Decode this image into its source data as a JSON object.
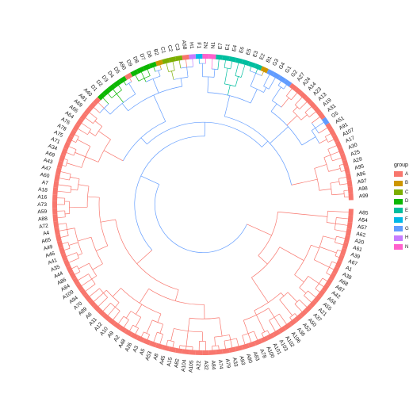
{
  "legend": {
    "title": "group",
    "items": [
      {
        "key": "A",
        "label": "A",
        "color": "#F8766D"
      },
      {
        "key": "B",
        "label": "B",
        "color": "#CD9600"
      },
      {
        "key": "C",
        "label": "C",
        "color": "#7CAE00"
      },
      {
        "key": "D",
        "label": "D",
        "color": "#0CB702"
      },
      {
        "key": "E",
        "label": "E",
        "color": "#00BE9F"
      },
      {
        "key": "F",
        "label": "F",
        "color": "#00B8E7"
      },
      {
        "key": "G",
        "label": "G",
        "color": "#619CFF"
      },
      {
        "key": "H",
        "label": "H",
        "color": "#C77CFF"
      },
      {
        "key": "N",
        "label": "N",
        "color": "#FF61CC"
      }
    ]
  },
  "tips": [
    {
      "label": "A99",
      "group": "A"
    },
    {
      "label": "A98",
      "group": "A"
    },
    {
      "label": "A97",
      "group": "A"
    },
    {
      "label": "A96",
      "group": "A"
    },
    {
      "label": "A95",
      "group": "A"
    },
    {
      "label": "A28",
      "group": "A"
    },
    {
      "label": "A25",
      "group": "A"
    },
    {
      "label": "A30",
      "group": "A"
    },
    {
      "label": "A17",
      "group": "A"
    },
    {
      "label": "A107",
      "group": "A"
    },
    {
      "label": "A91",
      "group": "A"
    },
    {
      "label": "A51",
      "group": "A"
    },
    {
      "label": "G5",
      "group": "G"
    },
    {
      "label": "A31",
      "group": "A"
    },
    {
      "label": "A19",
      "group": "A"
    },
    {
      "label": "A13",
      "group": "A"
    },
    {
      "label": "A23",
      "group": "A"
    },
    {
      "label": "A14",
      "group": "A"
    },
    {
      "label": "A24",
      "group": "A"
    },
    {
      "label": "A27",
      "group": "A"
    },
    {
      "label": "G2",
      "group": "G"
    },
    {
      "label": "G1",
      "group": "G"
    },
    {
      "label": "G4",
      "group": "G"
    },
    {
      "label": "G3",
      "group": "G"
    },
    {
      "label": "B1",
      "group": "B"
    },
    {
      "label": "E2",
      "group": "E"
    },
    {
      "label": "E3",
      "group": "E"
    },
    {
      "label": "E5",
      "group": "E"
    },
    {
      "label": "E6",
      "group": "E"
    },
    {
      "label": "E4",
      "group": "E"
    },
    {
      "label": "E1",
      "group": "E"
    },
    {
      "label": "E7",
      "group": "E"
    },
    {
      "label": "N1",
      "group": "N"
    },
    {
      "label": "N2",
      "group": "N"
    },
    {
      "label": "F1",
      "group": "F"
    },
    {
      "label": "H1",
      "group": "H"
    },
    {
      "label": "A58",
      "group": "A"
    },
    {
      "label": "C3",
      "group": "C"
    },
    {
      "label": "C2",
      "group": "C"
    },
    {
      "label": "C1",
      "group": "C"
    },
    {
      "label": "B2",
      "group": "B"
    },
    {
      "label": "D6",
      "group": "D"
    },
    {
      "label": "D7",
      "group": "D"
    },
    {
      "label": "D8",
      "group": "D"
    },
    {
      "label": "D9",
      "group": "D"
    },
    {
      "label": "A90",
      "group": "A"
    },
    {
      "label": "D5",
      "group": "D"
    },
    {
      "label": "D4",
      "group": "D"
    },
    {
      "label": "D3",
      "group": "D"
    },
    {
      "label": "D2",
      "group": "D"
    },
    {
      "label": "D1",
      "group": "D"
    },
    {
      "label": "A40",
      "group": "A"
    },
    {
      "label": "A81",
      "group": "A"
    },
    {
      "label": "A69",
      "group": "A"
    },
    {
      "label": "A66",
      "group": "A"
    },
    {
      "label": "A64",
      "group": "A"
    },
    {
      "label": "A76",
      "group": "A"
    },
    {
      "label": "A78",
      "group": "A"
    },
    {
      "label": "A75",
      "group": "A"
    },
    {
      "label": "A71",
      "group": "A"
    },
    {
      "label": "A34",
      "group": "A"
    },
    {
      "label": "A69",
      "group": "A"
    },
    {
      "label": "A43",
      "group": "A"
    },
    {
      "label": "A47",
      "group": "A"
    },
    {
      "label": "A60",
      "group": "A"
    },
    {
      "label": "A7",
      "group": "A"
    },
    {
      "label": "A18",
      "group": "A"
    },
    {
      "label": "A16",
      "group": "A"
    },
    {
      "label": "A73",
      "group": "A"
    },
    {
      "label": "A59",
      "group": "A"
    },
    {
      "label": "A88",
      "group": "A"
    },
    {
      "label": "A72",
      "group": "A"
    },
    {
      "label": "A4",
      "group": "A"
    },
    {
      "label": "A65",
      "group": "A"
    },
    {
      "label": "A49",
      "group": "A"
    },
    {
      "label": "A46",
      "group": "A"
    },
    {
      "label": "A41",
      "group": "A"
    },
    {
      "label": "A35",
      "group": "A"
    },
    {
      "label": "A44",
      "group": "A"
    },
    {
      "label": "A86",
      "group": "A"
    },
    {
      "label": "A84",
      "group": "A"
    },
    {
      "label": "A109",
      "group": "A"
    },
    {
      "label": "A94",
      "group": "A"
    },
    {
      "label": "A70",
      "group": "A"
    },
    {
      "label": "A89",
      "group": "A"
    },
    {
      "label": "A6",
      "group": "A"
    },
    {
      "label": "A11",
      "group": "A"
    },
    {
      "label": "A12",
      "group": "A"
    },
    {
      "label": "A10",
      "group": "A"
    },
    {
      "label": "A9",
      "group": "A"
    },
    {
      "label": "A2",
      "group": "A"
    },
    {
      "label": "A48",
      "group": "A"
    },
    {
      "label": "A26",
      "group": "A"
    },
    {
      "label": "A3",
      "group": "A"
    },
    {
      "label": "A5",
      "group": "A"
    },
    {
      "label": "A53",
      "group": "A"
    },
    {
      "label": "A8",
      "group": "A"
    },
    {
      "label": "A45",
      "group": "A"
    },
    {
      "label": "A15",
      "group": "A"
    },
    {
      "label": "A82",
      "group": "A"
    },
    {
      "label": "A104",
      "group": "A"
    },
    {
      "label": "A105",
      "group": "A"
    },
    {
      "label": "A22",
      "group": "A"
    },
    {
      "label": "A32",
      "group": "A"
    },
    {
      "label": "A84",
      "group": "A"
    },
    {
      "label": "A74",
      "group": "A"
    },
    {
      "label": "A79",
      "group": "A"
    },
    {
      "label": "A33",
      "group": "A"
    },
    {
      "label": "A93",
      "group": "A"
    },
    {
      "label": "A80",
      "group": "A"
    },
    {
      "label": "A83",
      "group": "A"
    },
    {
      "label": "A78",
      "group": "A"
    },
    {
      "label": "A100",
      "group": "A"
    },
    {
      "label": "A101",
      "group": "A"
    },
    {
      "label": "A103",
      "group": "A"
    },
    {
      "label": "A102",
      "group": "A"
    },
    {
      "label": "A106",
      "group": "A"
    },
    {
      "label": "A36",
      "group": "A"
    },
    {
      "label": "A52",
      "group": "A"
    },
    {
      "label": "A50",
      "group": "A"
    },
    {
      "label": "A37",
      "group": "A"
    },
    {
      "label": "A21",
      "group": "A"
    },
    {
      "label": "A55",
      "group": "A"
    },
    {
      "label": "A56",
      "group": "A"
    },
    {
      "label": "A42",
      "group": "A"
    },
    {
      "label": "A87",
      "group": "A"
    },
    {
      "label": "A68",
      "group": "A"
    },
    {
      "label": "A38",
      "group": "A"
    },
    {
      "label": "A1",
      "group": "A"
    },
    {
      "label": "A67",
      "group": "A"
    },
    {
      "label": "A39",
      "group": "A"
    },
    {
      "label": "A61",
      "group": "A"
    },
    {
      "label": "A20",
      "group": "A"
    },
    {
      "label": "A62",
      "group": "A"
    },
    {
      "label": "A57",
      "group": "A"
    },
    {
      "label": "A54",
      "group": "A"
    },
    {
      "label": "A85",
      "group": "A"
    }
  ],
  "colors": {
    "background": "#ffffff",
    "label_text": "#111111"
  }
}
